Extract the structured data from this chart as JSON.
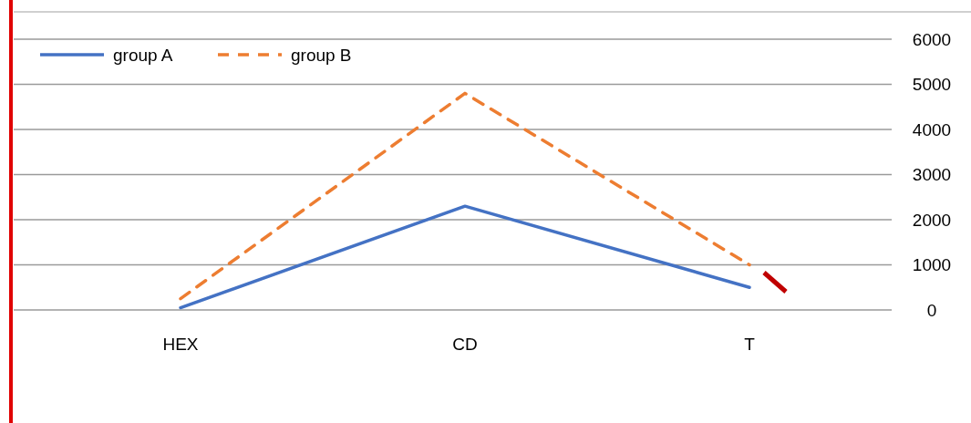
{
  "chart_data": {
    "type": "line",
    "categories": [
      "HEX",
      "CD",
      "T"
    ],
    "series": [
      {
        "name": "group A",
        "color": "#4472c4",
        "values": [
          50,
          2300,
          500
        ],
        "line_style": "solid"
      },
      {
        "name": "group B",
        "color": "#ed7d31",
        "values": [
          250,
          4800,
          1000
        ],
        "line_style": "dashed"
      }
    ],
    "ylim": [
      0,
      6000
    ],
    "yticks": [
      0,
      1000,
      2000,
      3000,
      4000,
      5000,
      6000
    ],
    "grid": "y",
    "legend": "top left",
    "marker": "none"
  }
}
